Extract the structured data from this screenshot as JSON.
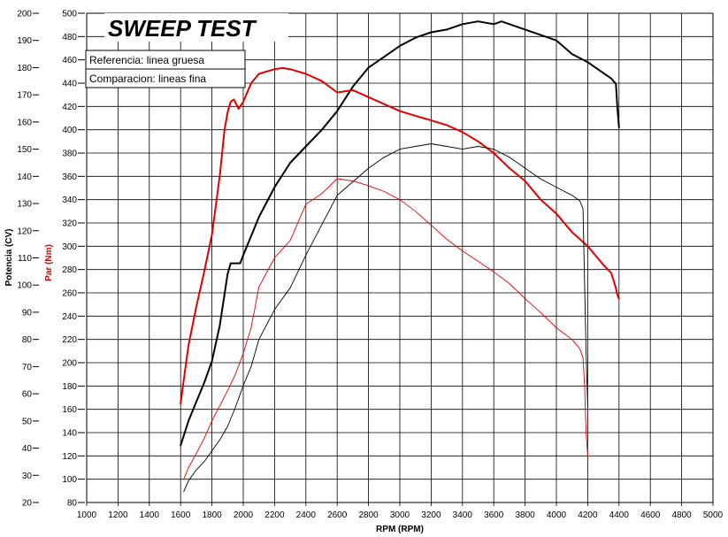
{
  "chart_data": {
    "type": "line",
    "title": "SWEEP TEST",
    "legend": {
      "placement": "top-left",
      "entries": [
        "Referencia: linea gruesa",
        "Comparacion: lineas fina"
      ]
    },
    "xlabel": "RPM (RPM)",
    "ylabel_left": "Potencia (CV)",
    "ylabel_right": "Par (Nm)",
    "xlim": [
      1000,
      5000
    ],
    "ylim_power": [
      20,
      200
    ],
    "ylim_torque": [
      80,
      500
    ],
    "x_ticks": [
      "1000",
      "1200",
      "1400",
      "1600",
      "1800",
      "2000",
      "2200",
      "2400",
      "2600",
      "2800",
      "3000",
      "3200",
      "3400",
      "3600",
      "3800",
      "4000",
      "4200",
      "4400",
      "4600",
      "4800",
      "5000"
    ],
    "power_ticks": [
      "200",
      "190",
      "180",
      "170",
      "160",
      "150",
      "140",
      "130",
      "120",
      "110",
      "100",
      "90",
      "80",
      "70",
      "60",
      "50",
      "40",
      "30",
      "20"
    ],
    "torque_ticks": [
      "500",
      "480",
      "460",
      "440",
      "420",
      "400",
      "380",
      "360",
      "340",
      "320",
      "300",
      "280",
      "260",
      "240",
      "220",
      "200",
      "180",
      "160",
      "140",
      "120",
      "100",
      "80"
    ],
    "grid": true,
    "colors": {
      "power": "#000000",
      "torque": "#e00000",
      "grid": "#000000"
    },
    "series": [
      {
        "axis": "power",
        "width": "thick",
        "x": [
          1600,
          1650,
          1700,
          1750,
          1800,
          1850,
          1900,
          1920,
          1940,
          1980,
          2000,
          2050,
          2100,
          2200,
          2300,
          2400,
          2500,
          2600,
          2700,
          2800,
          2900,
          3000,
          3100,
          3200,
          3300,
          3400,
          3500,
          3600,
          3650,
          3700,
          3800,
          3900,
          4000,
          4100,
          4200,
          4300,
          4350,
          4380,
          4390,
          4400
        ],
        "y": [
          41,
          50,
          57,
          64,
          72,
          85,
          104,
          108,
          108,
          108,
          111,
          118,
          125,
          136,
          145,
          151,
          157,
          164,
          173,
          180,
          184,
          188,
          191,
          193,
          194,
          196,
          197,
          196,
          197,
          196,
          194,
          192,
          190,
          185,
          182,
          178,
          176,
          174,
          165,
          158
        ]
      },
      {
        "axis": "torque",
        "width": "thick",
        "x": [
          1600,
          1620,
          1650,
          1700,
          1750,
          1800,
          1850,
          1880,
          1900,
          1920,
          1940,
          1970,
          2000,
          2050,
          2100,
          2150,
          2200,
          2250,
          2300,
          2400,
          2500,
          2600,
          2700,
          2800,
          2900,
          3000,
          3100,
          3200,
          3300,
          3400,
          3500,
          3600,
          3700,
          3800,
          3900,
          4000,
          4100,
          4200,
          4300,
          4350,
          4380,
          4390,
          4400
        ],
        "y": [
          165,
          185,
          215,
          248,
          278,
          310,
          360,
          400,
          415,
          424,
          426,
          418,
          424,
          440,
          448,
          450,
          452,
          453,
          452,
          448,
          442,
          432,
          434,
          428,
          422,
          416,
          412,
          408,
          404,
          398,
          390,
          380,
          367,
          356,
          340,
          328,
          312,
          300,
          284,
          277,
          264,
          258,
          255
        ]
      },
      {
        "axis": "power",
        "width": "thin",
        "x": [
          1620,
          1650,
          1700,
          1750,
          1800,
          1850,
          1900,
          1950,
          2000,
          2050,
          2100,
          2200,
          2300,
          2400,
          2500,
          2600,
          2700,
          2800,
          2900,
          3000,
          3100,
          3200,
          3300,
          3400,
          3500,
          3600,
          3700,
          3800,
          3900,
          4000,
          4100,
          4150,
          4170,
          4180,
          4190,
          4200
        ],
        "y": [
          24,
          28,
          32,
          35,
          39,
          43,
          48,
          55,
          63,
          70,
          80,
          91,
          99,
          111,
          122,
          133,
          138,
          143,
          147,
          150,
          151,
          152,
          151,
          150,
          151,
          150,
          147,
          143,
          139,
          136,
          133,
          131,
          128,
          100,
          75,
          55
        ]
      },
      {
        "axis": "torque",
        "width": "thin",
        "x": [
          1620,
          1650,
          1700,
          1750,
          1800,
          1850,
          1900,
          1950,
          2000,
          2050,
          2100,
          2200,
          2300,
          2400,
          2500,
          2600,
          2700,
          2800,
          2900,
          3000,
          3100,
          3200,
          3300,
          3400,
          3500,
          3600,
          3700,
          3800,
          3900,
          4000,
          4100,
          4150,
          4170,
          4180,
          4190,
          4200
        ],
        "y": [
          100,
          110,
          122,
          135,
          150,
          163,
          176,
          190,
          208,
          230,
          265,
          290,
          305,
          336,
          345,
          358,
          356,
          352,
          347,
          340,
          330,
          318,
          306,
          296,
          287,
          278,
          268,
          255,
          243,
          230,
          220,
          212,
          204,
          180,
          140,
          120
        ]
      }
    ]
  }
}
